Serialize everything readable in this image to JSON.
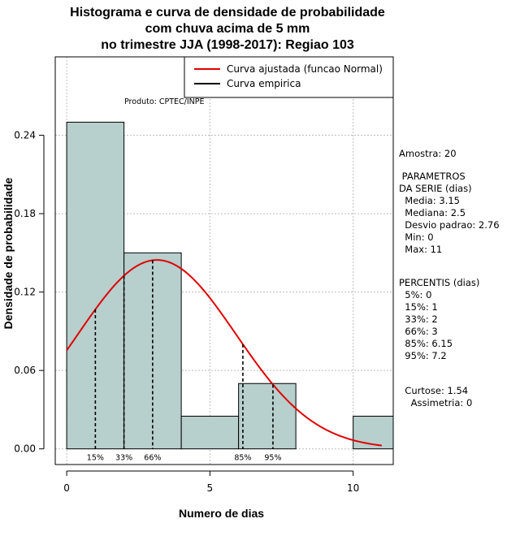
{
  "chart_data": {
    "type": "histogram",
    "title_lines": [
      "Histograma e curva de densidade de probabilidade",
      "com chuva acima de 5 mm",
      "no trimestre JJA (1998-2017): Regiao 103"
    ],
    "xlabel": "Numero de dias",
    "ylabel": "Densidade de probabilidade",
    "xlim": [
      -0.4,
      11.4
    ],
    "ylim": [
      -0.012,
      0.3
    ],
    "x_ticks": [
      0,
      5,
      10
    ],
    "y_ticks": [
      0.0,
      0.06,
      0.12,
      0.18,
      0.24
    ],
    "y_tick_labels": [
      "0.00",
      "0.06",
      "0.12",
      "0.18",
      "0.24"
    ],
    "bins": [
      {
        "start": 0,
        "end": 2,
        "density": 0.25
      },
      {
        "start": 2,
        "end": 4,
        "density": 0.15
      },
      {
        "start": 4,
        "end": 6,
        "density": 0.025
      },
      {
        "start": 6,
        "end": 8,
        "density": 0.05
      },
      {
        "start": 8,
        "end": 10,
        "density": 0.0
      },
      {
        "start": 10,
        "end": 12,
        "density": 0.025
      }
    ],
    "bar_color": "#b7cfcd",
    "curve_color": "#e00000",
    "normal_fit": {
      "mean": 3.15,
      "sd": 2.76,
      "x_range": [
        0,
        11
      ]
    },
    "percentile_markers": [
      {
        "label": "15%",
        "x": 1
      },
      {
        "label": "33%",
        "x": 2
      },
      {
        "label": "66%",
        "x": 3
      },
      {
        "label": "85%",
        "x": 6.15
      },
      {
        "label": "95%",
        "x": 7.2
      }
    ],
    "legend": [
      {
        "label": "Curva ajustada (funcao Normal)",
        "color": "#e00000"
      },
      {
        "label": "Curva empirica",
        "color": "#000000"
      }
    ],
    "legend_position": "top-right",
    "product_note": "Produto: CPTEC/INPE",
    "grid": true
  },
  "stats_panel": {
    "sample": "Amostra: 20",
    "params_title": " PARAMETROS\nDA SERIE (dias)",
    "params": "  Media: 3.15\n  Mediana: 2.5\n  Desvio padrao: 2.76\n  Min: 0\n  Max: 11",
    "percentiles_title": "PERCENTIS (dias)",
    "percentiles": "  5%: 0\n  15%: 1\n  33%: 2\n  66%: 3\n  85%: 6.15\n  95%: 7.2",
    "shape": "  Curtose: 1.54\n    Assimetria: 0"
  }
}
